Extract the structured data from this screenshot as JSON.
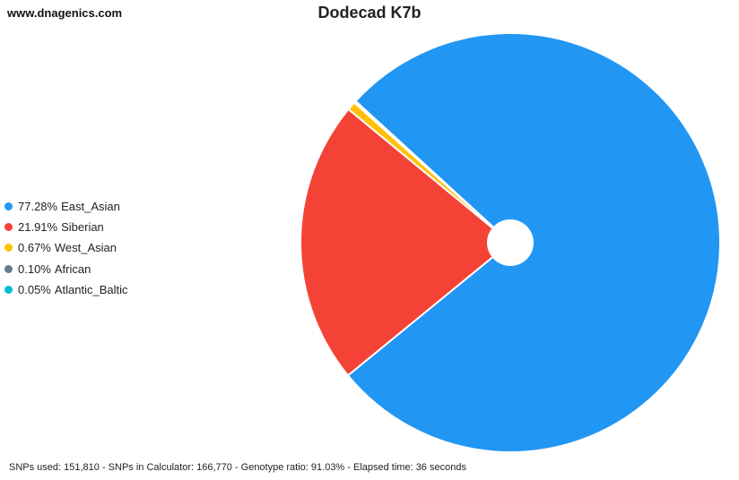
{
  "header": {
    "site": "www.dnagenics.com"
  },
  "footer": {
    "stats": "SNPs used: 151,810 - SNPs in Calculator: 166,770 - Genotype ratio: 91.03% - Elapsed time: 36 seconds"
  },
  "chart_data": {
    "type": "pie",
    "title": "Dodecad K7b",
    "legend_position": "left",
    "donut_hole": true,
    "slices": [
      {
        "label": "East_Asian",
        "value": 77.28,
        "display": "77.28%",
        "color": "#2196F3"
      },
      {
        "label": "Siberian",
        "value": 21.91,
        "display": "21.91%",
        "color": "#F44336"
      },
      {
        "label": "West_Asian",
        "value": 0.67,
        "display": "0.67%",
        "color": "#FFC107"
      },
      {
        "label": "African",
        "value": 0.1,
        "display": "0.10%",
        "color": "#607D8B"
      },
      {
        "label": "Atlantic_Baltic",
        "value": 0.05,
        "display": "0.05%",
        "color": "#00BCD4"
      }
    ]
  }
}
